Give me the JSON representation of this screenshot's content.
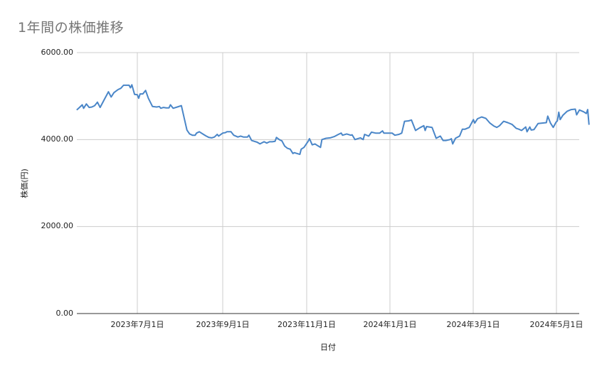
{
  "chart_data": {
    "type": "line",
    "title": "1年間の株価推移",
    "xlabel": "日付",
    "ylabel": "株価(円)",
    "ylim": [
      0,
      6000
    ],
    "yticks": [
      "0.00",
      "2000.00",
      "4000.00",
      "6000.00"
    ],
    "xticks": [
      "2023年7月1日",
      "2023年9月1日",
      "2023年11月1日",
      "2024年1月1日",
      "2024年3月1日",
      "2024年5月1日"
    ],
    "grid": true,
    "legend": "none",
    "line_color": "#4a86c8",
    "series": [
      {
        "name": "株価",
        "points": [
          [
            "2023-05-18",
            4680
          ],
          [
            "2023-05-20",
            4740
          ],
          [
            "2023-05-22",
            4800
          ],
          [
            "2023-05-23",
            4720
          ],
          [
            "2023-05-25",
            4820
          ],
          [
            "2023-05-27",
            4740
          ],
          [
            "2023-05-29",
            4750
          ],
          [
            "2023-05-31",
            4780
          ],
          [
            "2023-06-02",
            4860
          ],
          [
            "2023-06-04",
            4740
          ],
          [
            "2023-06-07",
            4920
          ],
          [
            "2023-06-10",
            5100
          ],
          [
            "2023-06-12",
            4980
          ],
          [
            "2023-06-14",
            5080
          ],
          [
            "2023-06-17",
            5150
          ],
          [
            "2023-06-19",
            5180
          ],
          [
            "2023-06-21",
            5250
          ],
          [
            "2023-06-25",
            5250
          ],
          [
            "2023-06-26",
            5190
          ],
          [
            "2023-06-27",
            5260
          ],
          [
            "2023-06-29",
            5040
          ],
          [
            "2023-07-01",
            5030
          ],
          [
            "2023-07-02",
            4950
          ],
          [
            "2023-07-03",
            5050
          ],
          [
            "2023-07-05",
            5050
          ],
          [
            "2023-07-07",
            5130
          ],
          [
            "2023-07-09",
            4950
          ],
          [
            "2023-07-12",
            4760
          ],
          [
            "2023-07-15",
            4750
          ],
          [
            "2023-07-17",
            4760
          ],
          [
            "2023-07-18",
            4720
          ],
          [
            "2023-07-20",
            4740
          ],
          [
            "2023-07-22",
            4730
          ],
          [
            "2023-07-24",
            4730
          ],
          [
            "2023-07-25",
            4800
          ],
          [
            "2023-07-27",
            4720
          ],
          [
            "2023-07-30",
            4750
          ],
          [
            "2023-08-02",
            4780
          ],
          [
            "2023-08-04",
            4500
          ],
          [
            "2023-08-06",
            4220
          ],
          [
            "2023-08-08",
            4130
          ],
          [
            "2023-08-10",
            4100
          ],
          [
            "2023-08-12",
            4100
          ],
          [
            "2023-08-13",
            4150
          ],
          [
            "2023-08-15",
            4180
          ],
          [
            "2023-08-18",
            4120
          ],
          [
            "2023-08-20",
            4080
          ],
          [
            "2023-08-22",
            4050
          ],
          [
            "2023-08-24",
            4040
          ],
          [
            "2023-08-26",
            4060
          ],
          [
            "2023-08-28",
            4120
          ],
          [
            "2023-08-29",
            4080
          ],
          [
            "2023-09-01",
            4150
          ],
          [
            "2023-09-03",
            4160
          ],
          [
            "2023-09-04",
            4180
          ],
          [
            "2023-09-07",
            4180
          ],
          [
            "2023-09-09",
            4100
          ],
          [
            "2023-09-12",
            4060
          ],
          [
            "2023-09-14",
            4080
          ],
          [
            "2023-09-16",
            4060
          ],
          [
            "2023-09-19",
            4060
          ],
          [
            "2023-09-20",
            4100
          ],
          [
            "2023-09-22",
            3980
          ],
          [
            "2023-09-24",
            3960
          ],
          [
            "2023-09-26",
            3940
          ],
          [
            "2023-09-28",
            3900
          ],
          [
            "2023-10-01",
            3950
          ],
          [
            "2023-10-03",
            3920
          ],
          [
            "2023-10-05",
            3950
          ],
          [
            "2023-10-07",
            3950
          ],
          [
            "2023-10-09",
            3960
          ],
          [
            "2023-10-10",
            4050
          ],
          [
            "2023-10-12",
            4000
          ],
          [
            "2023-10-14",
            3970
          ],
          [
            "2023-10-16",
            3850
          ],
          [
            "2023-10-18",
            3800
          ],
          [
            "2023-10-20",
            3780
          ],
          [
            "2023-10-22",
            3680
          ],
          [
            "2023-10-23",
            3700
          ],
          [
            "2023-10-25",
            3680
          ],
          [
            "2023-10-27",
            3660
          ],
          [
            "2023-10-28",
            3780
          ],
          [
            "2023-10-30",
            3820
          ],
          [
            "2023-11-02",
            3960
          ],
          [
            "2023-11-03",
            4020
          ],
          [
            "2023-11-05",
            3880
          ],
          [
            "2023-11-07",
            3900
          ],
          [
            "2023-11-09",
            3860
          ],
          [
            "2023-11-11",
            3820
          ],
          [
            "2023-11-12",
            4000
          ],
          [
            "2023-11-15",
            4030
          ],
          [
            "2023-11-18",
            4040
          ],
          [
            "2023-11-21",
            4070
          ],
          [
            "2023-11-24",
            4120
          ],
          [
            "2023-11-26",
            4150
          ],
          [
            "2023-11-27",
            4100
          ],
          [
            "2023-11-30",
            4130
          ],
          [
            "2023-12-03",
            4100
          ],
          [
            "2023-12-04",
            4110
          ],
          [
            "2023-12-06",
            4000
          ],
          [
            "2023-12-08",
            4020
          ],
          [
            "2023-12-10",
            4040
          ],
          [
            "2023-12-12",
            4000
          ],
          [
            "2023-12-13",
            4120
          ],
          [
            "2023-12-16",
            4080
          ],
          [
            "2023-12-18",
            4170
          ],
          [
            "2023-12-21",
            4150
          ],
          [
            "2023-12-24",
            4150
          ],
          [
            "2023-12-26",
            4200
          ],
          [
            "2023-12-27",
            4150
          ],
          [
            "2023-12-31",
            4150
          ],
          [
            "2024-01-02",
            4150
          ],
          [
            "2024-01-04",
            4100
          ],
          [
            "2024-01-07",
            4120
          ],
          [
            "2024-01-09",
            4150
          ],
          [
            "2024-01-11",
            4420
          ],
          [
            "2024-01-14",
            4430
          ],
          [
            "2024-01-16",
            4450
          ],
          [
            "2024-01-19",
            4210
          ],
          [
            "2024-01-22",
            4270
          ],
          [
            "2024-01-25",
            4320
          ],
          [
            "2024-01-26",
            4210
          ],
          [
            "2024-01-27",
            4300
          ],
          [
            "2024-01-31",
            4280
          ],
          [
            "2024-02-03",
            4030
          ],
          [
            "2024-02-06",
            4080
          ],
          [
            "2024-02-08",
            3980
          ],
          [
            "2024-02-10",
            3980
          ],
          [
            "2024-02-13",
            4000
          ],
          [
            "2024-02-14",
            4020
          ],
          [
            "2024-02-15",
            3900
          ],
          [
            "2024-02-17",
            4030
          ],
          [
            "2024-02-20",
            4080
          ],
          [
            "2024-02-22",
            4240
          ],
          [
            "2024-02-24",
            4240
          ],
          [
            "2024-02-27",
            4280
          ],
          [
            "2024-02-29",
            4400
          ],
          [
            "2024-03-01",
            4460
          ],
          [
            "2024-03-02",
            4380
          ],
          [
            "2024-03-04",
            4480
          ],
          [
            "2024-03-07",
            4520
          ],
          [
            "2024-03-10",
            4490
          ],
          [
            "2024-03-13",
            4380
          ],
          [
            "2024-03-16",
            4310
          ],
          [
            "2024-03-18",
            4280
          ],
          [
            "2024-03-20",
            4320
          ],
          [
            "2024-03-23",
            4420
          ],
          [
            "2024-03-26",
            4390
          ],
          [
            "2024-03-29",
            4350
          ],
          [
            "2024-04-01",
            4260
          ],
          [
            "2024-04-03",
            4240
          ],
          [
            "2024-04-05",
            4210
          ],
          [
            "2024-04-08",
            4290
          ],
          [
            "2024-04-09",
            4180
          ],
          [
            "2024-04-11",
            4290
          ],
          [
            "2024-04-12",
            4220
          ],
          [
            "2024-04-14",
            4230
          ],
          [
            "2024-04-17",
            4370
          ],
          [
            "2024-04-20",
            4380
          ],
          [
            "2024-04-23",
            4390
          ],
          [
            "2024-04-24",
            4540
          ],
          [
            "2024-04-26",
            4380
          ],
          [
            "2024-04-28",
            4280
          ],
          [
            "2024-04-30",
            4400
          ],
          [
            "2024-05-01",
            4430
          ],
          [
            "2024-05-02",
            4630
          ],
          [
            "2024-05-03",
            4460
          ],
          [
            "2024-05-05",
            4560
          ],
          [
            "2024-05-08",
            4650
          ],
          [
            "2024-05-11",
            4690
          ],
          [
            "2024-05-14",
            4700
          ],
          [
            "2024-05-15",
            4570
          ],
          [
            "2024-05-17",
            4680
          ],
          [
            "2024-05-20",
            4640
          ],
          [
            "2024-05-22",
            4600
          ],
          [
            "2024-05-23",
            4690
          ],
          [
            "2024-05-24",
            4340
          ]
        ]
      }
    ]
  }
}
